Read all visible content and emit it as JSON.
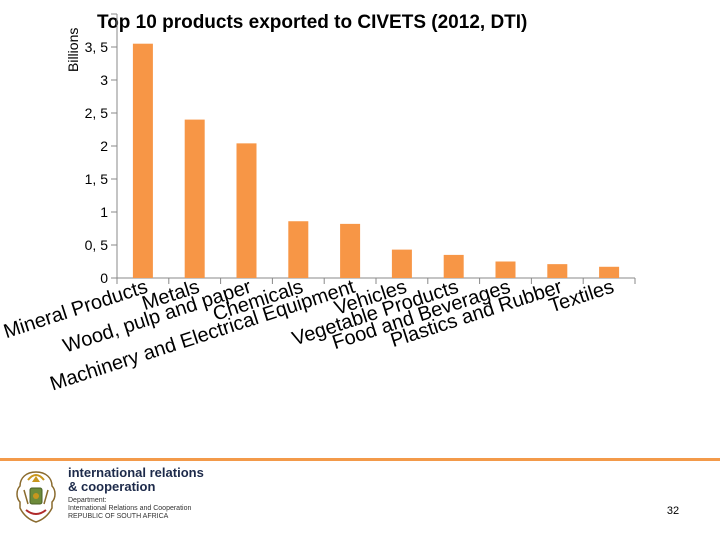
{
  "chart_data": {
    "type": "bar",
    "title": "Top 10 products exported to CIVETS (2012, DTI)",
    "ylabel": "Billions",
    "xlabel": "",
    "categories": [
      "Mineral Products",
      "Metals",
      "Wood, pulp and paper",
      "Chemicals",
      "Machinery and Electrical Equipment",
      "Vehicles",
      "Vegetable Products",
      "Food and Beverages",
      "Plastics and Rubber",
      "Textiles"
    ],
    "values": [
      3.55,
      2.4,
      2.04,
      0.86,
      0.82,
      0.43,
      0.35,
      0.25,
      0.21,
      0.17
    ],
    "ylim": [
      0,
      4
    ],
    "yticks": [
      0,
      0.5,
      1,
      1.5,
      2,
      2.5,
      3,
      3.5
    ],
    "ytick_labels": [
      "0",
      "0, 5",
      "1",
      "1, 5",
      "2",
      "2, 5",
      "3",
      "3, 5"
    ],
    "grid": false,
    "bar_color": "#f79646"
  },
  "footer": {
    "org_line1": "international relations",
    "org_line2": "& cooperation",
    "dept_line1": "Department:",
    "dept_line2": "International Relations and Cooperation",
    "dept_line3": "REPUBLIC OF SOUTH AFRICA",
    "page_number": "32"
  },
  "colors": {
    "bar": "#f79646",
    "accent_rule": "#f39a4a",
    "org_text": "#1d2a4a"
  }
}
